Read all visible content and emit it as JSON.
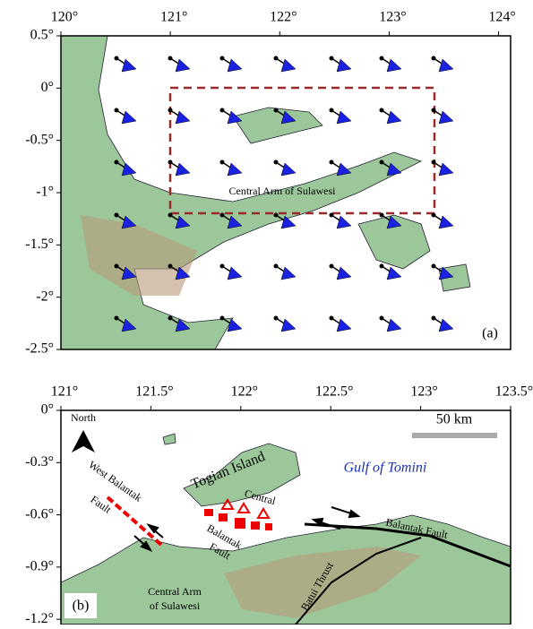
{
  "panel_a": {
    "label": "(a)",
    "xlim": [
      120,
      124.11
    ],
    "ylim": [
      -2.5,
      0.5
    ],
    "xticks": [
      {
        "value": 120,
        "label": "120°"
      },
      {
        "value": 121,
        "label": "121°"
      },
      {
        "value": 122,
        "label": "122°"
      },
      {
        "value": 123,
        "label": "123°"
      },
      {
        "value": 124,
        "label": "124°"
      }
    ],
    "yticks": [
      {
        "value": 0.5,
        "label": "0.5°"
      },
      {
        "value": 0,
        "label": "0°"
      },
      {
        "value": -0.5,
        "label": "-0.5°"
      },
      {
        "value": -1,
        "label": "-1°"
      },
      {
        "value": -1.5,
        "label": "-1.5°"
      },
      {
        "value": -2,
        "label": "-2°"
      },
      {
        "value": -2.5,
        "label": "-2.5°"
      }
    ],
    "annotation": "Central Arm of Sulawesi"
  },
  "panel_b": {
    "label": "(b)",
    "xlim": [
      121,
      123.5
    ],
    "ylim": [
      -1.23,
      0
    ],
    "xticks": [
      {
        "value": 121,
        "label": "121°"
      },
      {
        "value": 121.5,
        "label": "121.5°"
      },
      {
        "value": 122,
        "label": "122°"
      },
      {
        "value": 122.5,
        "label": "122.5°"
      },
      {
        "value": 123,
        "label": "123°"
      },
      {
        "value": 123.5,
        "label": "123.5°"
      }
    ],
    "yticks": [
      {
        "value": 0,
        "label": "0°"
      },
      {
        "value": -0.3,
        "label": "-0.3°"
      },
      {
        "value": -0.6,
        "label": "-0.6°"
      },
      {
        "value": -0.9,
        "label": "-0.9°"
      },
      {
        "value": -1.2,
        "label": "-1.2°"
      }
    ],
    "north": "North",
    "scale_bar": "50 km",
    "labels": {
      "togian": "Togian Island",
      "gulf": "Gulf of Tomini",
      "central_1": "Central",
      "central_2": "Balantak",
      "central_3": "Fault",
      "west_1": "West Balantak",
      "west_2": "Fault",
      "balantak": "Balantak Fault",
      "batui": "Batui Thrust",
      "arm_1": "Central Arm",
      "arm_2": "of Sulawesi"
    }
  }
}
